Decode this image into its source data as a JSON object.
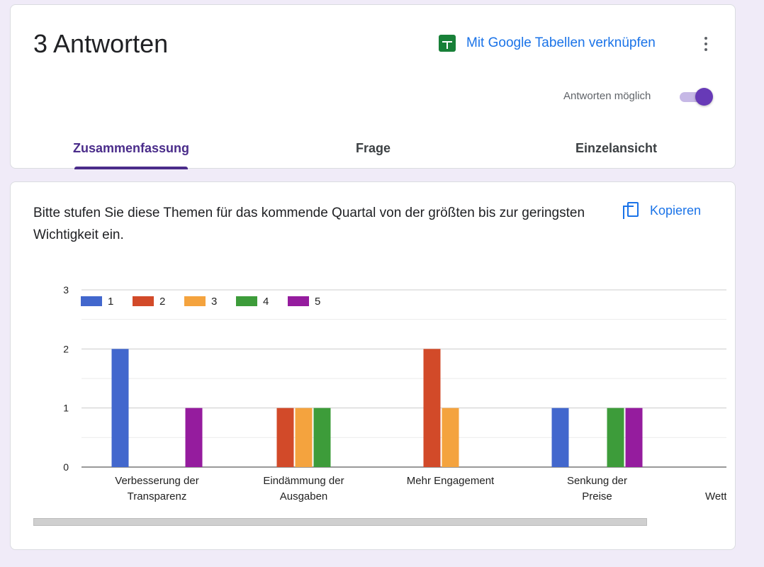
{
  "header": {
    "title": "3 Antworten",
    "sheets_link": "Mit Google Tabellen verknüpfen",
    "accepting_label": "Antworten möglich",
    "accepting_enabled": true,
    "tabs": [
      {
        "label": "Zusammenfassung",
        "active": true
      },
      {
        "label": "Frage",
        "active": false
      },
      {
        "label": "Einzelansicht",
        "active": false
      }
    ]
  },
  "question": {
    "text": "Bitte stufen Sie diese Themen für das kommende Quartal von der größten bis zur geringsten Wichtigkeit ein.",
    "copy_label": "Kopieren"
  },
  "icons": {
    "sheets": "google-sheets-icon",
    "more": "more-vert-icon",
    "copy": "copy-icon"
  },
  "colors": {
    "accent": "#673ab7",
    "link": "#1a73e8",
    "sheets_green": "#188038"
  },
  "chart_data": {
    "type": "bar",
    "categories": [
      "Verbesserung der Transparenz",
      "Eindämmung der Ausgaben",
      "Mehr Engagement",
      "Senkung der Preise",
      "Wettbew"
    ],
    "series": [
      {
        "name": "1",
        "color": "#4267cd",
        "values": [
          2,
          0,
          0,
          1,
          0
        ]
      },
      {
        "name": "2",
        "color": "#d24a29",
        "values": [
          0,
          1,
          2,
          0,
          0
        ]
      },
      {
        "name": "3",
        "color": "#f4a33e",
        "values": [
          0,
          1,
          1,
          0,
          0
        ]
      },
      {
        "name": "4",
        "color": "#3d9c3a",
        "values": [
          0,
          1,
          0,
          1,
          0
        ]
      },
      {
        "name": "5",
        "color": "#951c9e",
        "values": [
          1,
          0,
          0,
          1,
          0
        ]
      }
    ],
    "ylim": [
      0,
      3
    ],
    "yticks": [
      0,
      1,
      2,
      3
    ],
    "grid": true,
    "legend": "top-left"
  }
}
